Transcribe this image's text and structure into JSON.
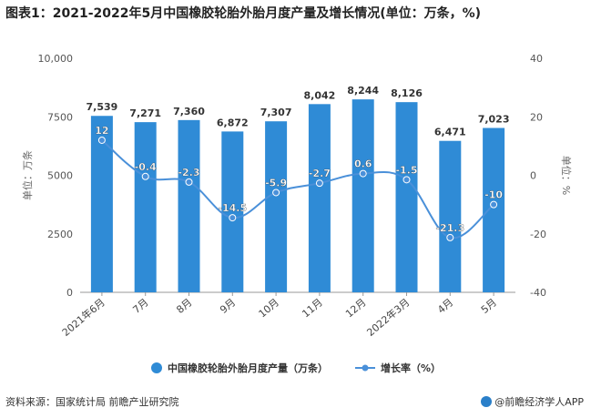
{
  "title": "图表1：2021-2022年5月中国橡胶轮胎外胎月度产量及增长情况(单位：万条，%)",
  "footer": {
    "source": "资料来源：国家统计局 前瞻产业研究院",
    "brand": "@前瞻经济学人APP"
  },
  "watermark": "前瞻产业研究院",
  "colors": {
    "bar": "#2f8bd6",
    "line": "#4a90d9",
    "grid": "#e6e6e6",
    "axis": "#888888"
  },
  "chart_data": {
    "type": "bar",
    "categories": [
      "2021年6月",
      "7月",
      "8月",
      "9月",
      "10月",
      "11月",
      "12月",
      "2022年3月",
      "4月",
      "5月"
    ],
    "series": [
      {
        "name": "中国橡胶轮胎外胎月度产量（万条）",
        "type": "bar",
        "axis": "left",
        "values": [
          7539,
          7271,
          7360,
          6872,
          7307,
          8042,
          8244,
          8126,
          6471,
          7023
        ],
        "labels": [
          "7,539",
          "7,271",
          "7,360",
          "6,872",
          "7,307",
          "8,042",
          "8,244",
          "8,126",
          "6,471",
          "7,023"
        ]
      },
      {
        "name": "增长率（%）",
        "type": "line",
        "axis": "right",
        "values": [
          12,
          -0.4,
          -2.3,
          -14.5,
          -5.9,
          -2.7,
          0.6,
          -1.5,
          -21.3,
          -10
        ],
        "labels": [
          "12",
          "-0.4",
          "-2.3",
          "-14.5",
          "-5.9",
          "-2.7",
          "0.6",
          "-1.5",
          "-21.3",
          "-10"
        ]
      }
    ],
    "ylabel": "单位：万条",
    "y2label": "单位：%",
    "ylim": [
      0,
      10000
    ],
    "yticks": [
      "0",
      "2500",
      "5000",
      "7500",
      "10,000"
    ],
    "y2lim": [
      -40,
      40
    ],
    "y2ticks": [
      "-40",
      "-20",
      "0",
      "20",
      "40"
    ],
    "grid": false,
    "legend": "bottom"
  }
}
